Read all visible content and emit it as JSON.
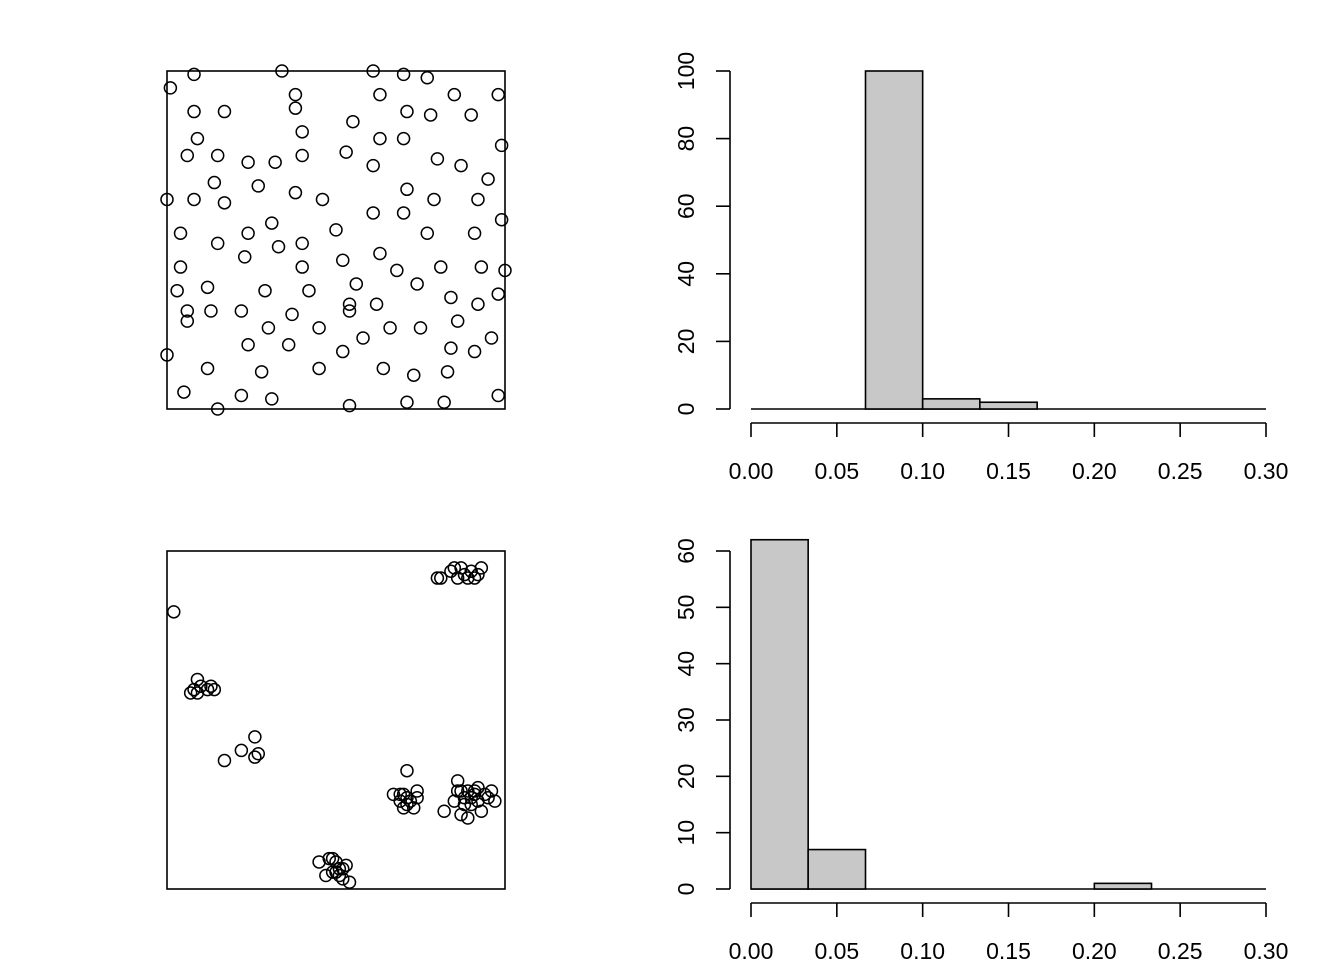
{
  "chart_data": [
    {
      "type": "scatter",
      "panel": "top-left",
      "axes_visible": false,
      "xlim": [
        0,
        1
      ],
      "ylim": [
        0,
        1
      ],
      "points": [
        [
          0.08,
          0.99
        ],
        [
          0.34,
          1.0
        ],
        [
          0.61,
          1.0
        ],
        [
          0.7,
          0.99
        ],
        [
          0.77,
          0.98
        ],
        [
          0.01,
          0.95
        ],
        [
          0.38,
          0.93
        ],
        [
          0.63,
          0.93
        ],
        [
          0.85,
          0.93
        ],
        [
          0.98,
          0.93
        ],
        [
          0.38,
          0.89
        ],
        [
          0.08,
          0.88
        ],
        [
          0.17,
          0.88
        ],
        [
          0.71,
          0.88
        ],
        [
          0.78,
          0.87
        ],
        [
          0.9,
          0.87
        ],
        [
          0.55,
          0.85
        ],
        [
          0.4,
          0.82
        ],
        [
          0.09,
          0.8
        ],
        [
          0.63,
          0.8
        ],
        [
          0.7,
          0.8
        ],
        [
          0.99,
          0.78
        ],
        [
          0.06,
          0.75
        ],
        [
          0.15,
          0.75
        ],
        [
          0.4,
          0.75
        ],
        [
          0.53,
          0.76
        ],
        [
          0.24,
          0.73
        ],
        [
          0.32,
          0.73
        ],
        [
          0.61,
          0.72
        ],
        [
          0.8,
          0.74
        ],
        [
          0.87,
          0.72
        ],
        [
          0.95,
          0.68
        ],
        [
          0.14,
          0.67
        ],
        [
          0.27,
          0.66
        ],
        [
          0.71,
          0.65
        ],
        [
          0.38,
          0.64
        ],
        [
          0.0,
          0.62
        ],
        [
          0.08,
          0.62
        ],
        [
          0.17,
          0.61
        ],
        [
          0.46,
          0.62
        ],
        [
          0.79,
          0.62
        ],
        [
          0.92,
          0.62
        ],
        [
          0.61,
          0.58
        ],
        [
          0.7,
          0.58
        ],
        [
          0.99,
          0.56
        ],
        [
          0.31,
          0.55
        ],
        [
          0.5,
          0.53
        ],
        [
          0.04,
          0.52
        ],
        [
          0.24,
          0.52
        ],
        [
          0.77,
          0.52
        ],
        [
          0.91,
          0.52
        ],
        [
          0.15,
          0.49
        ],
        [
          0.33,
          0.48
        ],
        [
          0.4,
          0.49
        ],
        [
          0.23,
          0.45
        ],
        [
          0.52,
          0.44
        ],
        [
          0.63,
          0.46
        ],
        [
          0.04,
          0.42
        ],
        [
          0.4,
          0.42
        ],
        [
          0.68,
          0.41
        ],
        [
          0.81,
          0.42
        ],
        [
          0.93,
          0.42
        ],
        [
          1.0,
          0.41
        ],
        [
          0.56,
          0.37
        ],
        [
          0.74,
          0.37
        ],
        [
          0.03,
          0.35
        ],
        [
          0.12,
          0.36
        ],
        [
          0.29,
          0.35
        ],
        [
          0.42,
          0.35
        ],
        [
          0.84,
          0.33
        ],
        [
          0.98,
          0.34
        ],
        [
          0.54,
          0.31
        ],
        [
          0.62,
          0.31
        ],
        [
          0.92,
          0.31
        ],
        [
          0.06,
          0.29
        ],
        [
          0.13,
          0.29
        ],
        [
          0.22,
          0.29
        ],
        [
          0.37,
          0.28
        ],
        [
          0.54,
          0.29
        ],
        [
          0.06,
          0.26
        ],
        [
          0.3,
          0.24
        ],
        [
          0.45,
          0.24
        ],
        [
          0.66,
          0.24
        ],
        [
          0.75,
          0.24
        ],
        [
          0.86,
          0.26
        ],
        [
          0.58,
          0.21
        ],
        [
          0.96,
          0.21
        ],
        [
          0.24,
          0.19
        ],
        [
          0.36,
          0.19
        ],
        [
          0.52,
          0.17
        ],
        [
          0.84,
          0.18
        ],
        [
          0.91,
          0.17
        ],
        [
          0.0,
          0.16
        ],
        [
          0.12,
          0.12
        ],
        [
          0.28,
          0.11
        ],
        [
          0.45,
          0.12
        ],
        [
          0.64,
          0.12
        ],
        [
          0.73,
          0.1
        ],
        [
          0.83,
          0.11
        ],
        [
          0.05,
          0.05
        ],
        [
          0.22,
          0.04
        ],
        [
          0.31,
          0.03
        ],
        [
          0.71,
          0.02
        ],
        [
          0.82,
          0.02
        ],
        [
          0.98,
          0.04
        ],
        [
          0.54,
          0.01
        ],
        [
          0.15,
          0.0
        ]
      ]
    },
    {
      "type": "bar",
      "panel": "top-right",
      "histogram": true,
      "bins": [
        {
          "from": 0.0667,
          "to": 0.1,
          "count": 100
        },
        {
          "from": 0.1,
          "to": 0.1333,
          "count": 3
        },
        {
          "from": 0.1333,
          "to": 0.1667,
          "count": 2
        }
      ],
      "xlim": [
        0,
        0.3
      ],
      "ylim": [
        0,
        100
      ],
      "xticks": [
        "0.00",
        "0.05",
        "0.10",
        "0.15",
        "0.20",
        "0.25",
        "0.30"
      ],
      "xtick_values": [
        0,
        0.05,
        0.1,
        0.15,
        0.2,
        0.25,
        0.3
      ],
      "yticks": [
        "0",
        "20",
        "40",
        "60",
        "80",
        "100"
      ],
      "ytick_values": [
        0,
        20,
        40,
        60,
        80,
        100
      ]
    },
    {
      "type": "scatter",
      "panel": "bottom-left",
      "axes_visible": false,
      "xlim": [
        0,
        1
      ],
      "ylim": [
        0,
        1
      ],
      "points": [
        [
          0.02,
          0.82
        ],
        [
          0.81,
          0.92
        ],
        [
          0.84,
          0.94
        ],
        [
          0.86,
          0.92
        ],
        [
          0.87,
          0.95
        ],
        [
          0.88,
          0.93
        ],
        [
          0.9,
          0.94
        ],
        [
          0.91,
          0.92
        ],
        [
          0.93,
          0.95
        ],
        [
          0.92,
          0.93
        ],
        [
          0.8,
          0.92
        ],
        [
          0.85,
          0.95
        ],
        [
          0.89,
          0.92
        ],
        [
          0.08,
          0.59
        ],
        [
          0.09,
          0.62
        ],
        [
          0.1,
          0.6
        ],
        [
          0.12,
          0.59
        ],
        [
          0.13,
          0.6
        ],
        [
          0.14,
          0.59
        ],
        [
          0.09,
          0.58
        ],
        [
          0.07,
          0.58
        ],
        [
          0.17,
          0.38
        ],
        [
          0.22,
          0.41
        ],
        [
          0.26,
          0.45
        ],
        [
          0.26,
          0.39
        ],
        [
          0.27,
          0.4
        ],
        [
          0.67,
          0.28
        ],
        [
          0.69,
          0.26
        ],
        [
          0.7,
          0.28
        ],
        [
          0.71,
          0.27
        ],
        [
          0.72,
          0.26
        ],
        [
          0.73,
          0.24
        ],
        [
          0.7,
          0.24
        ],
        [
          0.74,
          0.29
        ],
        [
          0.71,
          0.35
        ],
        [
          0.74,
          0.27
        ],
        [
          0.69,
          0.28
        ],
        [
          0.71,
          0.25
        ],
        [
          0.82,
          0.23
        ],
        [
          0.85,
          0.26
        ],
        [
          0.86,
          0.32
        ],
        [
          0.87,
          0.29
        ],
        [
          0.88,
          0.27
        ],
        [
          0.89,
          0.29
        ],
        [
          0.9,
          0.25
        ],
        [
          0.91,
          0.28
        ],
        [
          0.92,
          0.3
        ],
        [
          0.93,
          0.23
        ],
        [
          0.95,
          0.27
        ],
        [
          0.96,
          0.29
        ],
        [
          0.89,
          0.21
        ],
        [
          0.87,
          0.22
        ],
        [
          0.88,
          0.25
        ],
        [
          0.91,
          0.29
        ],
        [
          0.92,
          0.26
        ],
        [
          0.86,
          0.29
        ],
        [
          0.9,
          0.27
        ],
        [
          0.94,
          0.28
        ],
        [
          0.97,
          0.26
        ],
        [
          0.45,
          0.08
        ],
        [
          0.47,
          0.04
        ],
        [
          0.48,
          0.09
        ],
        [
          0.49,
          0.05
        ],
        [
          0.5,
          0.08
        ],
        [
          0.51,
          0.06
        ],
        [
          0.52,
          0.03
        ],
        [
          0.53,
          0.07
        ],
        [
          0.54,
          0.02
        ],
        [
          0.51,
          0.04
        ],
        [
          0.49,
          0.09
        ],
        [
          0.5,
          0.05
        ],
        [
          0.52,
          0.06
        ]
      ]
    },
    {
      "type": "bar",
      "panel": "bottom-right",
      "histogram": true,
      "bins": [
        {
          "from": 0.0,
          "to": 0.0333,
          "count": 62
        },
        {
          "from": 0.0333,
          "to": 0.0667,
          "count": 7
        },
        {
          "from": 0.2,
          "to": 0.2333,
          "count": 1
        }
      ],
      "xlim": [
        0,
        0.3
      ],
      "ylim": [
        0,
        60
      ],
      "xticks": [
        "0.00",
        "0.05",
        "0.10",
        "0.15",
        "0.20",
        "0.25",
        "0.30"
      ],
      "xtick_values": [
        0,
        0.05,
        0.1,
        0.15,
        0.2,
        0.25,
        0.3
      ],
      "yticks": [
        "0",
        "10",
        "20",
        "30",
        "40",
        "50",
        "60"
      ],
      "ytick_values": [
        0,
        10,
        20,
        30,
        40,
        50,
        60
      ]
    }
  ]
}
